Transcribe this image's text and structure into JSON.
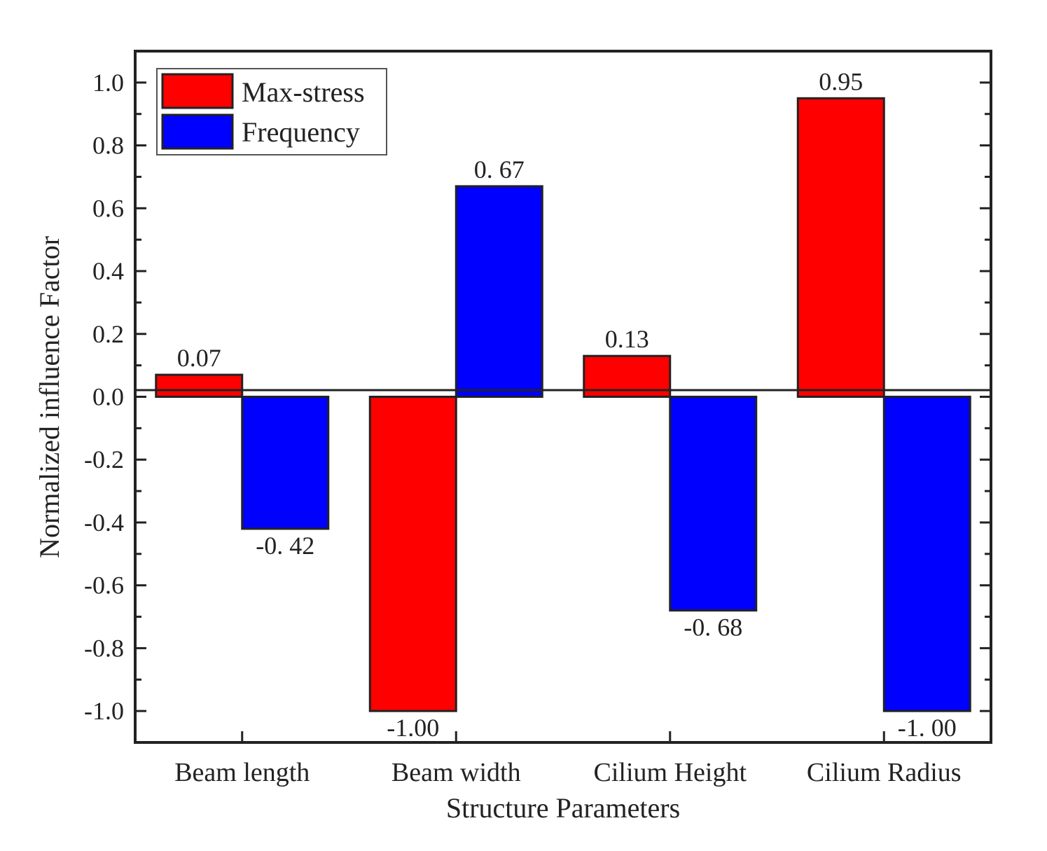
{
  "chart_data": {
    "type": "bar",
    "title": "",
    "xlabel": "Structure Parameters",
    "ylabel": "Normalized influence Factor",
    "ylim": [
      -1.1,
      1.1
    ],
    "yticks": [
      1.0,
      0.8,
      0.6,
      0.4,
      0.2,
      0.0,
      -0.2,
      -0.4,
      -0.6,
      -0.8,
      -1.0
    ],
    "ytick_labels": [
      "1.0",
      "0.8",
      "0.6",
      "0.4",
      "0.2",
      "0.0",
      "-0.2",
      "-0.4",
      "-0.6",
      "-0.8",
      "-1.0"
    ],
    "categories": [
      "Beam length",
      "Beam width",
      "Cilium Height",
      "Cilium Radius"
    ],
    "series": [
      {
        "name": "Max-stress",
        "color": "#ff0000",
        "values": [
          0.07,
          -1.0,
          0.13,
          0.95
        ],
        "labels": [
          "0.07",
          "-1.00",
          "0.13",
          "0.95"
        ]
      },
      {
        "name": "Frequency",
        "color": "#0000ff",
        "values": [
          -0.42,
          0.67,
          -0.68,
          -1.0
        ],
        "labels": [
          "-0. 42",
          "0. 67",
          "-0. 68",
          "-1. 00"
        ]
      }
    ],
    "legend": "top-left",
    "grid": false
  }
}
